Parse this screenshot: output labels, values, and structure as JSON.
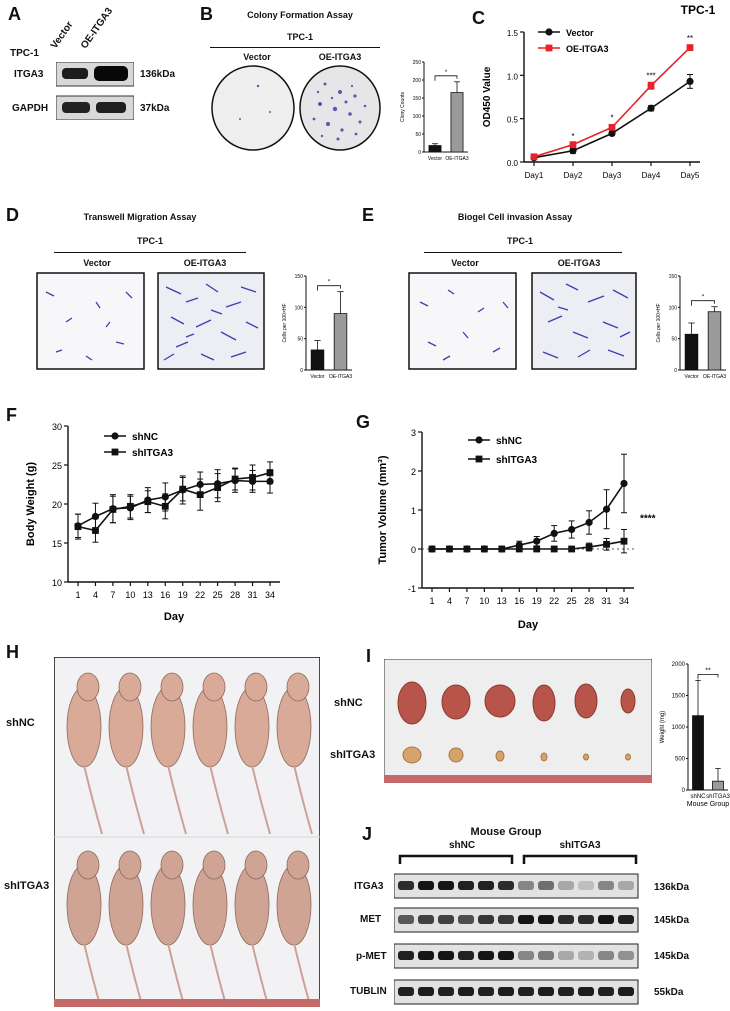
{
  "panels": {
    "A": "A",
    "B": "B",
    "C": "C",
    "D": "D",
    "E": "E",
    "F": "F",
    "G": "G",
    "H": "H",
    "I": "I",
    "J": "J"
  },
  "panel_a": {
    "cell": "TPC-1",
    "cols": [
      "Vector",
      "OE-ITGA3"
    ],
    "rows": [
      {
        "label": "ITGA3",
        "kda": "136kDa"
      },
      {
        "label": "GAPDH",
        "kda": "37kDa"
      }
    ]
  },
  "panel_b": {
    "title": "Colony Formation Assay",
    "cell": "TPC-1",
    "cols": [
      "Vector",
      "OE-ITGA3"
    ]
  },
  "panel_d": {
    "title": "Transwell Migration Assay",
    "cell": "TPC-1",
    "cols": [
      "Vector",
      "OE-ITGA3"
    ]
  },
  "panel_e": {
    "title": "Biogel Cell invasion Assay",
    "cell": "TPC-1",
    "cols": [
      "Vector",
      "OE-ITGA3"
    ]
  },
  "panel_h": {
    "rows": [
      "shNC",
      "shITGA3"
    ]
  },
  "panel_i": {
    "rows": [
      "shNC",
      "shITGA3"
    ]
  },
  "panel_j": {
    "title": "Mouse Group",
    "groups": [
      "shNC",
      "shITGA3"
    ],
    "rows": [
      {
        "label": "ITGA3",
        "kda": "136kDa"
      },
      {
        "label": "MET",
        "kda": "145kDa"
      },
      {
        "label": "p-MET",
        "kda": "145kDa"
      },
      {
        "label": "TUBLIN",
        "kda": "55kDa"
      }
    ]
  },
  "colors": {
    "black": "#111111",
    "red": "#e8222a",
    "grey": "#9a9a9a",
    "blue": "#4a4ab8"
  },
  "chart_data": [
    {
      "id": "B",
      "type": "bar",
      "title": "",
      "categories": [
        "Vector",
        "OE-ITGA3"
      ],
      "values": [
        18,
        165
      ],
      "errors": [
        5,
        30
      ],
      "ylabel": "Clony Counts",
      "ylim": [
        0,
        250
      ],
      "yticks": [
        0,
        50,
        100,
        150,
        200,
        250
      ],
      "sig": "*"
    },
    {
      "id": "C",
      "type": "line",
      "title": "TPC-1",
      "x": [
        "Day1",
        "Day2",
        "Day3",
        "Day4",
        "Day5"
      ],
      "ylabel": "OD450 Value",
      "ylim": [
        0,
        1.5
      ],
      "yticks": [
        "0.0",
        "0.5",
        "1.0",
        "1.5"
      ],
      "series": [
        {
          "name": "Vector",
          "values": [
            0.05,
            0.13,
            0.33,
            0.62,
            0.93
          ],
          "errors": [
            0.01,
            0.03,
            0.02,
            0.03,
            0.08
          ]
        },
        {
          "name": "OE-ITGA3",
          "values": [
            0.06,
            0.2,
            0.4,
            0.88,
            1.32
          ],
          "errors": [
            0.01,
            0.02,
            0.03,
            0.04,
            0.03
          ]
        }
      ],
      "sig": [
        "",
        "*",
        "*",
        "***",
        "**"
      ]
    },
    {
      "id": "D",
      "type": "bar",
      "categories": [
        "Vector",
        "OE-ITGA3"
      ],
      "values": [
        32,
        90
      ],
      "errors": [
        15,
        35
      ],
      "ylabel": "Cells per 100×HF",
      "ylim": [
        0,
        150
      ],
      "yticks": [
        0,
        50,
        100,
        150
      ],
      "sig": "*"
    },
    {
      "id": "E",
      "type": "bar",
      "categories": [
        "Vector",
        "OE-ITGA3"
      ],
      "values": [
        57,
        93
      ],
      "errors": [
        18,
        8
      ],
      "ylabel": "Cells per 100×HF",
      "ylim": [
        0,
        150
      ],
      "yticks": [
        0,
        50,
        100,
        150
      ],
      "sig": "*"
    },
    {
      "id": "F",
      "type": "line",
      "x": [
        "1",
        "4",
        "7",
        "10",
        "13",
        "16",
        "19",
        "22",
        "25",
        "28",
        "31",
        "34"
      ],
      "xlabel": "Day",
      "ylabel": "Body Weight (g)",
      "ylim": [
        10,
        30
      ],
      "yticks": [
        "10",
        "15",
        "20",
        "25",
        "30"
      ],
      "series": [
        {
          "name": "shNC",
          "values": [
            17.2,
            18.4,
            19.4,
            19.5,
            20.5,
            20.9,
            21.8,
            22.5,
            22.6,
            23.0,
            22.9,
            22.9
          ],
          "errors": [
            1.5,
            1.7,
            1.8,
            1.5,
            1.6,
            1.8,
            1.8,
            1.6,
            1.8,
            1.5,
            1.4,
            1.5
          ]
        },
        {
          "name": "shITGA3",
          "values": [
            17.1,
            16.6,
            19.3,
            19.7,
            20.3,
            19.7,
            21.9,
            21.2,
            22.1,
            23.2,
            23.4,
            24.0
          ],
          "errors": [
            1.6,
            1.5,
            1.7,
            1.5,
            1.4,
            1.6,
            1.5,
            2.0,
            1.8,
            1.4,
            1.6,
            1.4
          ]
        }
      ]
    },
    {
      "id": "G",
      "type": "line",
      "x": [
        "1",
        "4",
        "7",
        "10",
        "13",
        "16",
        "19",
        "22",
        "25",
        "28",
        "31",
        "34"
      ],
      "xlabel": "Day",
      "ylabel": "Tumor Volume (mm³)",
      "ylim": [
        -1,
        3
      ],
      "yticks": [
        "-1",
        "0",
        "1",
        "2",
        "3"
      ],
      "series": [
        {
          "name": "shNC",
          "values": [
            0,
            0,
            0,
            0,
            0,
            0.1,
            0.2,
            0.4,
            0.5,
            0.68,
            1.02,
            1.68
          ],
          "errors": [
            0,
            0,
            0,
            0,
            0,
            0.1,
            0.12,
            0.2,
            0.22,
            0.3,
            0.5,
            0.75
          ]
        },
        {
          "name": "shITGA3",
          "values": [
            0,
            0,
            0,
            0,
            0,
            0,
            0,
            0,
            0,
            0.05,
            0.12,
            0.2
          ],
          "errors": [
            0,
            0,
            0,
            0,
            0,
            0,
            0,
            0,
            0,
            0.1,
            0.15,
            0.3
          ]
        }
      ],
      "sig": "****"
    },
    {
      "id": "I",
      "type": "bar",
      "categories": [
        "shNC",
        "shITGA3"
      ],
      "values": [
        1180,
        140
      ],
      "errors": [
        560,
        200
      ],
      "xlabel": "Mouse Group",
      "ylabel": "Weight (mg)",
      "ylim": [
        0,
        2000
      ],
      "yticks": [
        0,
        500,
        1000,
        1500,
        2000
      ],
      "sig": "**"
    }
  ]
}
